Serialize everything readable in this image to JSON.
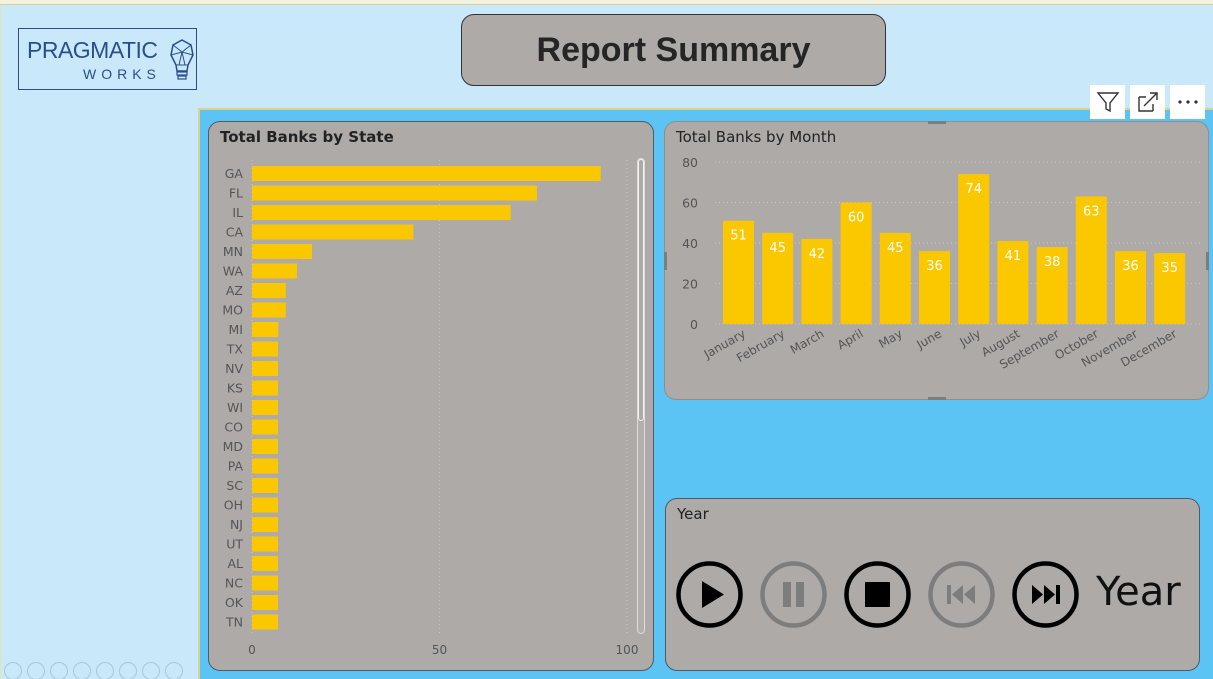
{
  "logo": {
    "line1": "PRAGMATIC",
    "line2": "WORKS"
  },
  "title": "Report Summary",
  "header_icons": [
    "filter-icon",
    "focus-mode-icon",
    "more-options-icon"
  ],
  "colors": {
    "accent": "#fbc800",
    "visual_bg": "#aeaaa8",
    "canvas_bg": "#5bc4f4",
    "page_bg": "#c9e9fb"
  },
  "state_visual": {
    "title": "Total Banks by State"
  },
  "month_visual": {
    "title": "Total Banks by Month"
  },
  "year_visual": {
    "title": "Year",
    "label": "Year",
    "buttons": [
      {
        "name": "play",
        "enabled": true
      },
      {
        "name": "pause",
        "enabled": false
      },
      {
        "name": "stop",
        "enabled": true
      },
      {
        "name": "previous",
        "enabled": false
      },
      {
        "name": "next",
        "enabled": true
      }
    ]
  },
  "chart_data": [
    {
      "type": "bar",
      "orientation": "horizontal",
      "title": "Total Banks by State",
      "categories": [
        "GA",
        "FL",
        "IL",
        "CA",
        "MN",
        "WA",
        "AZ",
        "MO",
        "MI",
        "TX",
        "NV",
        "KS",
        "WI",
        "CO",
        "MD",
        "PA",
        "SC",
        "OH",
        "NJ",
        "UT",
        "AL",
        "NC",
        "OK",
        "TN"
      ],
      "values": [
        93,
        76,
        69,
        43,
        16,
        12,
        9,
        9,
        7,
        6,
        5,
        4,
        4,
        3,
        3,
        3,
        3,
        2,
        1,
        1,
        0,
        0,
        0,
        0
      ],
      "xlim": [
        0,
        100
      ],
      "xticks": [
        "0",
        "50",
        "100"
      ]
    },
    {
      "type": "bar",
      "orientation": "vertical",
      "title": "Total Banks by Month",
      "categories": [
        "January",
        "February",
        "March",
        "April",
        "May",
        "June",
        "July",
        "August",
        "September",
        "October",
        "November",
        "December"
      ],
      "values": [
        51,
        45,
        42,
        60,
        45,
        36,
        74,
        41,
        38,
        63,
        36,
        35
      ],
      "ylim": [
        0,
        80
      ],
      "yticks": [
        "0",
        "20",
        "40",
        "60",
        "80"
      ],
      "data_labels": true
    }
  ]
}
